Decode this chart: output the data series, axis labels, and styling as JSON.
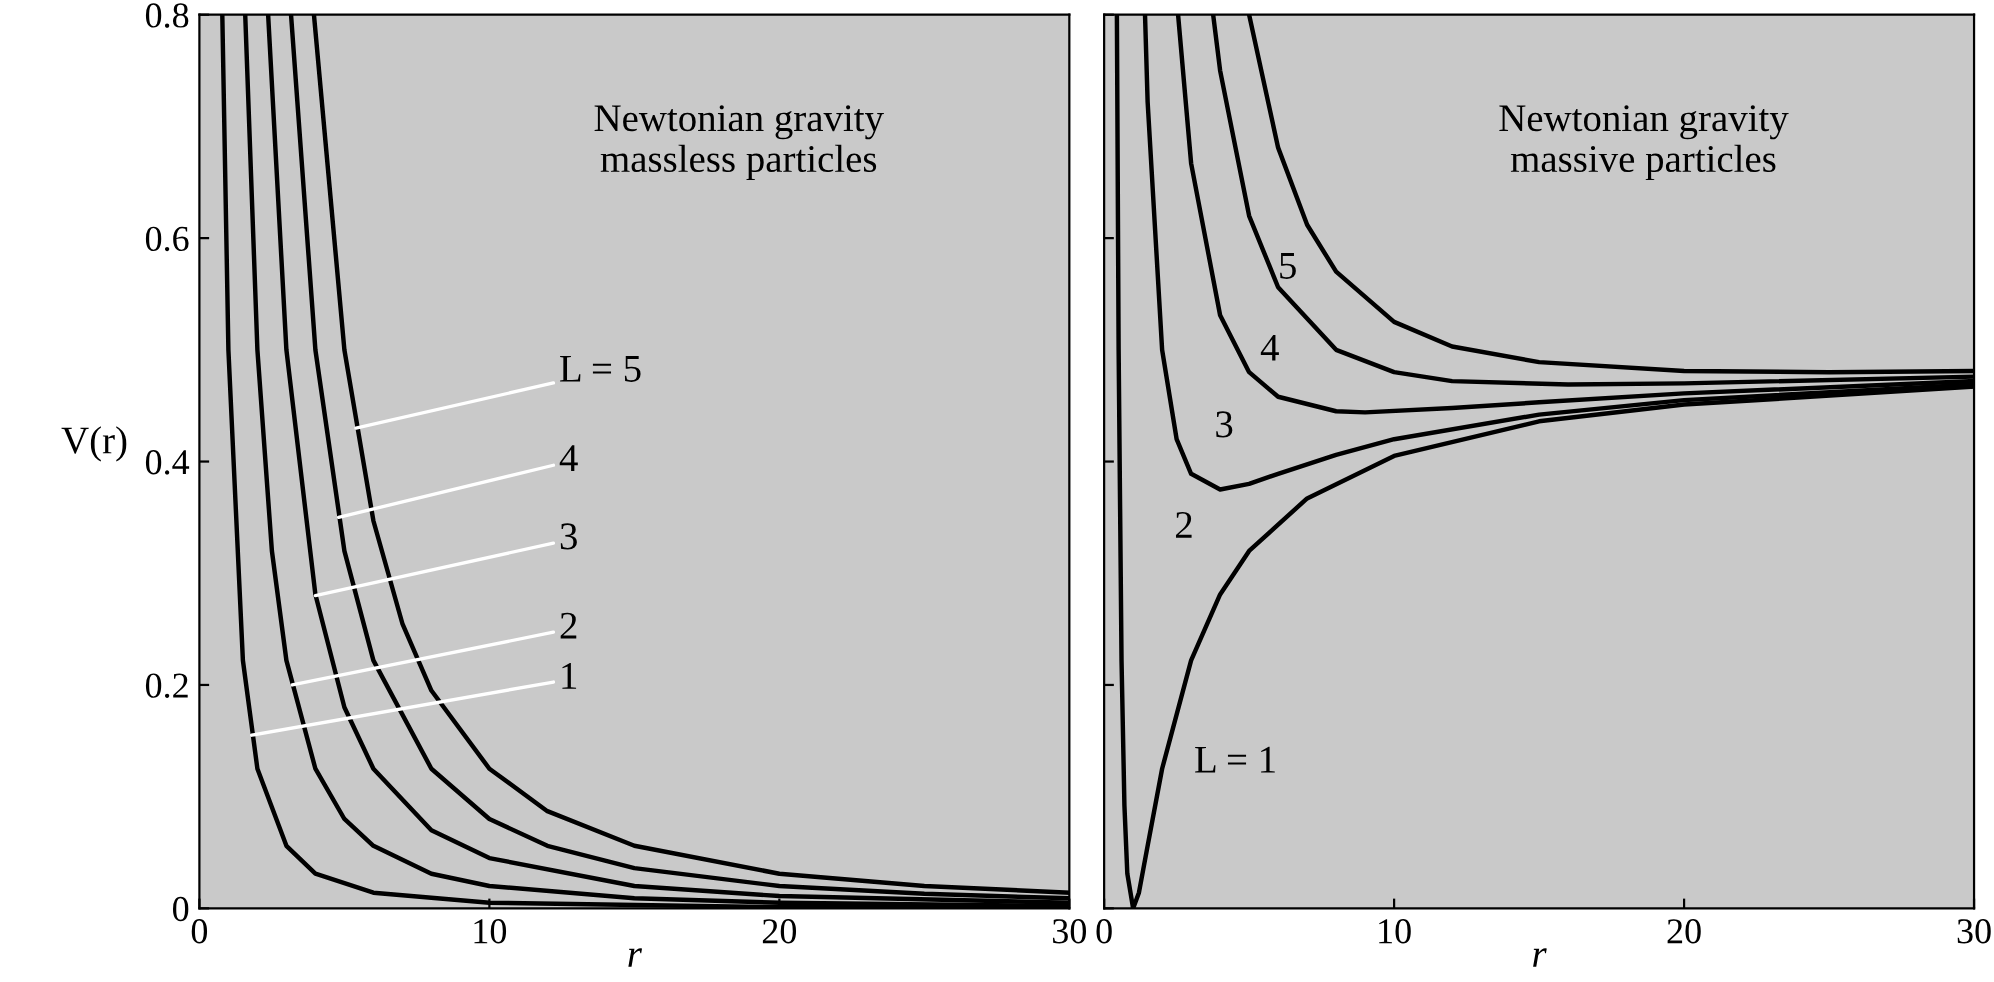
{
  "chart_data": [
    {
      "type": "line",
      "xlabel": "r",
      "ylabel": "V(r)",
      "xlim": [
        0,
        30
      ],
      "ylim": [
        0,
        0.8
      ],
      "xticks": [
        0,
        10,
        20,
        30
      ],
      "yticks": [
        0,
        0.2,
        0.4,
        0.6,
        0.8
      ],
      "grid": false,
      "marker": "none",
      "line_style": "solid",
      "series": [
        {
          "color": "#000000",
          "x": [
            0.79,
            1,
            1.5,
            2,
            3,
            4,
            6,
            10,
            20,
            30
          ],
          "values": [
            0.8,
            0.5,
            0.222,
            0.125,
            0.056,
            0.031,
            0.014,
            0.005,
            0.001,
            0.001
          ]
        },
        {
          "color": "#000000",
          "x": [
            1.58,
            2,
            2.5,
            3,
            4,
            5,
            6,
            8,
            10,
            15,
            20,
            30
          ],
          "values": [
            0.8,
            0.5,
            0.32,
            0.222,
            0.125,
            0.08,
            0.056,
            0.031,
            0.02,
            0.009,
            0.005,
            0.002
          ]
        },
        {
          "color": "#000000",
          "x": [
            2.37,
            3,
            4,
            5,
            6,
            8,
            10,
            15,
            20,
            30
          ],
          "values": [
            0.8,
            0.5,
            0.281,
            0.18,
            0.125,
            0.07,
            0.045,
            0.02,
            0.011,
            0.005
          ]
        },
        {
          "color": "#000000",
          "x": [
            3.16,
            4,
            5,
            6,
            8,
            10,
            12,
            15,
            20,
            25,
            30
          ],
          "values": [
            0.8,
            0.5,
            0.32,
            0.222,
            0.125,
            0.08,
            0.056,
            0.036,
            0.02,
            0.013,
            0.009
          ]
        },
        {
          "color": "#000000",
          "x": [
            3.95,
            5,
            6,
            7,
            8,
            10,
            12,
            15,
            20,
            25,
            30
          ],
          "values": [
            0.8,
            0.5,
            0.347,
            0.255,
            0.195,
            0.125,
            0.087,
            0.056,
            0.031,
            0.02,
            0.014
          ]
        }
      ],
      "annotations": [
        "Newtonian gravity\nmassless particles",
        {
          "text": "L = 5",
          "x": 5.4,
          "y": 0.43
        },
        {
          "text": "4",
          "x": 4.8,
          "y": 0.35
        },
        {
          "text": "3",
          "x": 4,
          "y": 0.28
        },
        {
          "text": "2",
          "x": 3.2,
          "y": 0.2
        },
        {
          "text": "1",
          "x": 1.8,
          "y": 0.155
        }
      ]
    },
    {
      "type": "line",
      "xlabel": "r",
      "xlim": [
        0,
        30
      ],
      "ylim": [
        0,
        0.8
      ],
      "xticks": [
        0,
        10,
        20,
        30
      ],
      "yticks": [
        0,
        0.2,
        0.4,
        0.6,
        0.8
      ],
      "tick_labels": "x",
      "grid": false,
      "marker": "none",
      "line_style": "solid",
      "series": [
        {
          "color": "#000000",
          "x": [
            0.44,
            0.5,
            0.6,
            0.7,
            0.8,
            1,
            1.2,
            1.5,
            2,
            3,
            4,
            5,
            7,
            10,
            15,
            20,
            30
          ],
          "values": [
            0.8,
            0.5,
            0.222,
            0.092,
            0.031,
            0,
            0.014,
            0.056,
            0.125,
            0.222,
            0.281,
            0.32,
            0.367,
            0.405,
            0.436,
            0.451,
            0.467
          ]
        },
        {
          "color": "#000000",
          "x": [
            1.41,
            1.5,
            2,
            2.5,
            3,
            4,
            5,
            6,
            8,
            10,
            15,
            20,
            30
          ],
          "values": [
            0.8,
            0.722,
            0.5,
            0.42,
            0.389,
            0.375,
            0.38,
            0.389,
            0.406,
            0.42,
            0.442,
            0.455,
            0.469
          ]
        },
        {
          "color": "#000000",
          "x": [
            2.55,
            3,
            4,
            5,
            6,
            8,
            9,
            12,
            15,
            20,
            30
          ],
          "values": [
            0.8,
            0.667,
            0.531,
            0.48,
            0.458,
            0.445,
            0.444,
            0.448,
            0.453,
            0.461,
            0.472
          ]
        },
        {
          "color": "#000000",
          "x": [
            3.76,
            4,
            5,
            6,
            8,
            10,
            12,
            16,
            20,
            30
          ],
          "values": [
            0.8,
            0.75,
            0.62,
            0.556,
            0.5,
            0.48,
            0.472,
            0.469,
            0.47,
            0.476
          ]
        },
        {
          "color": "#000000",
          "x": [
            5,
            6,
            7,
            8,
            10,
            12,
            15,
            20,
            25,
            30
          ],
          "values": [
            0.8,
            0.681,
            0.612,
            0.57,
            0.525,
            0.503,
            0.489,
            0.481,
            0.48,
            0.481
          ]
        }
      ],
      "annotations": [
        "Newtonian gravity\nmassive particles",
        {
          "text": "5",
          "x": 7,
          "y": 0.612
        },
        {
          "text": "4",
          "x": 6,
          "y": 0.556
        },
        {
          "text": "3",
          "x": 5,
          "y": 0.48
        },
        {
          "text": "2",
          "x": 4,
          "y": 0.375
        },
        {
          "text": "L = 1",
          "x": 3,
          "y": 0.222
        }
      ]
    }
  ]
}
